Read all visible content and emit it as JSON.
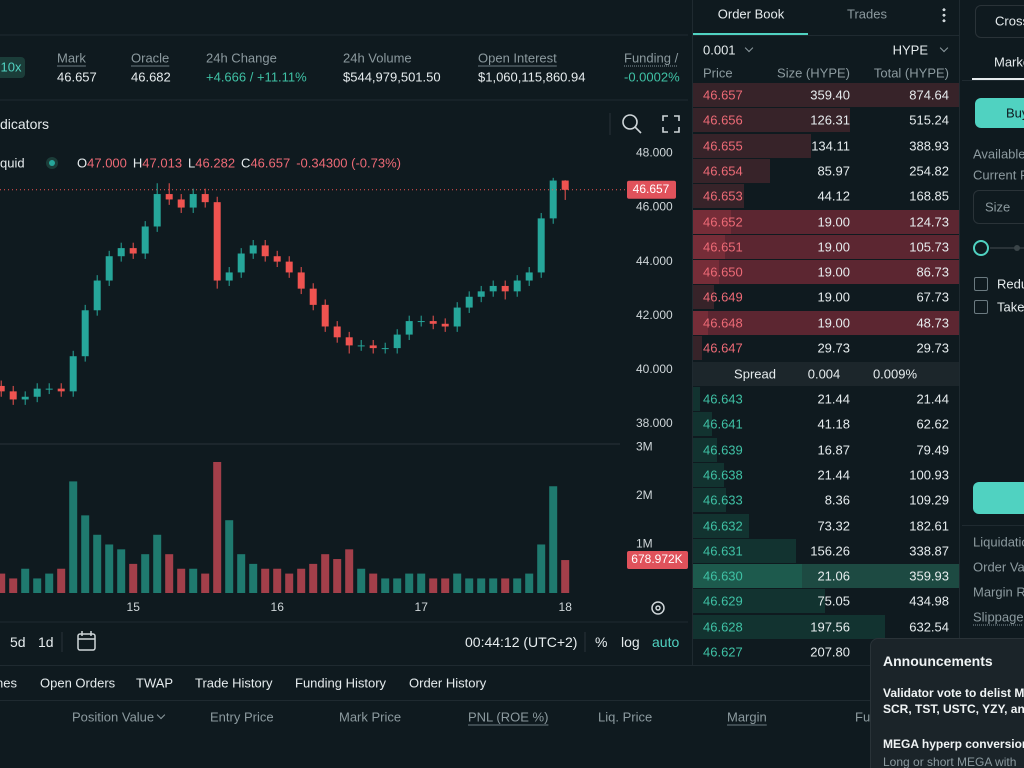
{
  "header": {
    "leverage": "10x",
    "stats": [
      {
        "label": "Mark",
        "value": "46.657"
      },
      {
        "label": "Oracle",
        "value": "46.682"
      },
      {
        "label": "24h Change",
        "value": "+4.666 / +11.11%"
      },
      {
        "label": "24h Volume",
        "value": "$544,979,501.50"
      },
      {
        "label": "Open Interest",
        "value": "$1,060,115,860.94"
      },
      {
        "label": "Funding /",
        "value": "-0.0002%"
      }
    ]
  },
  "toolbar": {
    "indicators": "dicators"
  },
  "legend": {
    "symbol": "quid",
    "items": [
      {
        "key": "O",
        "value": "47.000"
      },
      {
        "key": "H",
        "value": "47.013"
      },
      {
        "key": "L",
        "value": "46.282"
      },
      {
        "key": "C",
        "value": "46.657"
      }
    ],
    "change": "-0.34300 (-0.73%)"
  },
  "bottom_toolbar": {
    "ranges": [
      "5d",
      "1d"
    ],
    "clock": "00:44:12 (UTC+2)",
    "percent": "%",
    "log": "log",
    "auto": "auto"
  },
  "chart_data": {
    "type": "candlestick",
    "up_color": "#26a69a",
    "down_color": "#ef5350",
    "volume_up_color": "#1f7a6f",
    "volume_down_color": "#a33f4a",
    "x": [
      2,
      4,
      6,
      8,
      10,
      12,
      14,
      16,
      18,
      20,
      22,
      24,
      26,
      28,
      30,
      32,
      34,
      36,
      38,
      40,
      42,
      44,
      46,
      48,
      50,
      52,
      54,
      56,
      58,
      60,
      62,
      64,
      66,
      68,
      70,
      72,
      74,
      76,
      78,
      80,
      82,
      84,
      86,
      88,
      90,
      92,
      94,
      96
    ],
    "open": [
      39.4,
      39.2,
      38.9,
      39.0,
      39.3,
      39.3,
      39.2,
      40.5,
      42.2,
      43.3,
      44.2,
      44.5,
      44.3,
      45.3,
      46.5,
      46.3,
      46.0,
      46.5,
      46.2,
      43.3,
      43.6,
      44.3,
      44.6,
      44.2,
      44.0,
      43.6,
      43.0,
      42.4,
      41.6,
      41.2,
      40.9,
      40.9,
      40.8,
      40.8,
      41.3,
      41.8,
      41.8,
      41.7,
      41.6,
      42.3,
      42.7,
      42.9,
      43.1,
      42.9,
      43.3,
      43.6,
      45.6,
      47.0
    ],
    "high": [
      39.6,
      39.4,
      39.2,
      39.5,
      39.5,
      39.5,
      40.7,
      42.4,
      43.5,
      44.4,
      44.7,
      44.7,
      45.5,
      46.9,
      46.9,
      46.5,
      46.7,
      46.7,
      46.4,
      43.8,
      44.5,
      44.8,
      44.8,
      44.4,
      44.2,
      43.8,
      43.2,
      42.6,
      41.8,
      41.4,
      41.1,
      41.1,
      41.0,
      41.5,
      42.0,
      42.0,
      42.0,
      41.9,
      42.5,
      42.9,
      43.1,
      43.3,
      43.3,
      43.5,
      43.8,
      45.8,
      47.1,
      47.013
    ],
    "low": [
      39.0,
      38.7,
      38.7,
      38.8,
      39.1,
      39.0,
      39.0,
      40.3,
      42.0,
      43.1,
      44.0,
      44.1,
      44.1,
      45.1,
      46.1,
      45.8,
      45.8,
      46.0,
      43.0,
      43.1,
      43.4,
      44.1,
      44.0,
      43.8,
      43.4,
      42.8,
      42.2,
      41.4,
      41.0,
      40.6,
      40.7,
      40.6,
      40.6,
      40.6,
      41.1,
      41.6,
      41.5,
      41.4,
      41.4,
      42.1,
      42.5,
      42.7,
      42.6,
      42.7,
      43.1,
      43.4,
      45.4,
      46.282
    ],
    "close": [
      39.2,
      38.9,
      39.0,
      39.3,
      39.3,
      39.2,
      40.5,
      42.2,
      43.3,
      44.2,
      44.5,
      44.3,
      45.3,
      46.5,
      46.3,
      46.0,
      46.5,
      46.2,
      43.3,
      43.6,
      44.3,
      44.6,
      44.2,
      44.0,
      43.6,
      43.0,
      42.4,
      41.6,
      41.2,
      40.9,
      40.9,
      40.8,
      40.8,
      41.3,
      41.8,
      41.8,
      41.7,
      41.6,
      42.3,
      42.7,
      42.9,
      43.1,
      42.9,
      43.3,
      43.6,
      45.6,
      47.0,
      46.657
    ],
    "xlim": [
      1.8,
      103.8
    ],
    "xticks": [
      {
        "value": 24,
        "label": "15"
      },
      {
        "value": 48,
        "label": "16"
      },
      {
        "value": 72,
        "label": "17"
      },
      {
        "value": 96,
        "label": "18"
      }
    ],
    "ylim": [
      37.4,
      48.5
    ],
    "yticks": [
      {
        "value": 38,
        "label": "38.000"
      },
      {
        "value": 40,
        "label": "40.000"
      },
      {
        "value": 42,
        "label": "42.000"
      },
      {
        "value": 44,
        "label": "44.000"
      },
      {
        "value": 46,
        "label": "46.000"
      },
      {
        "value": 48,
        "label": "48.000"
      }
    ],
    "volume": {
      "values": [
        400000,
        300000,
        500000,
        300000,
        400000,
        500000,
        2300000,
        1600000,
        1200000,
        1000000,
        900000,
        600000,
        800000,
        1200000,
        800000,
        500000,
        500000,
        400000,
        2700000,
        1500000,
        800000,
        600000,
        500000,
        500000,
        400000,
        500000,
        600000,
        800000,
        700000,
        900000,
        500000,
        400000,
        300000,
        300000,
        400000,
        400000,
        300000,
        300000,
        400000,
        300000,
        300000,
        300000,
        300000,
        300000,
        400000,
        1000000,
        2200000,
        678972
      ],
      "value_labels": [
        null,
        null,
        null,
        null,
        null,
        null,
        null,
        null,
        null,
        null,
        null,
        null,
        null,
        null,
        null,
        null,
        null,
        null,
        null,
        null,
        null,
        null,
        null,
        null,
        null,
        null,
        null,
        null,
        null,
        null,
        null,
        null,
        null,
        null,
        null,
        null,
        null,
        null,
        null,
        null,
        null,
        null,
        null,
        null,
        null,
        null,
        null,
        "678.972K"
      ],
      "ylim": [
        0,
        3050000
      ],
      "yticks": [
        {
          "value": 1000000,
          "label": "1M"
        },
        {
          "value": 2000000,
          "label": "2M"
        },
        {
          "value": 3000000,
          "label": "3M"
        }
      ]
    }
  },
  "order_book": {
    "tabs": [
      "Order Book",
      "Trades"
    ],
    "tick": "0.001",
    "asset": "HYPE",
    "columns": [
      "Price",
      "Size (HYPE)",
      "Total (HYPE)"
    ],
    "asks": [
      {
        "price": "46.657",
        "size": "359.40",
        "total": "874.64"
      },
      {
        "price": "46.656",
        "size": "126.31",
        "total": "515.24"
      },
      {
        "price": "46.655",
        "size": "134.11",
        "total": "388.93"
      },
      {
        "price": "46.654",
        "size": "85.97",
        "total": "254.82"
      },
      {
        "price": "46.653",
        "size": "44.12",
        "total": "168.85"
      },
      {
        "price": "46.652",
        "size": "19.00",
        "total": "124.73",
        "highlight": true
      },
      {
        "price": "46.651",
        "size": "19.00",
        "total": "105.73",
        "highlight": true
      },
      {
        "price": "46.650",
        "size": "19.00",
        "total": "86.73",
        "highlight": true
      },
      {
        "price": "46.649",
        "size": "19.00",
        "total": "67.73"
      },
      {
        "price": "46.648",
        "size": "19.00",
        "total": "48.73",
        "highlight": true
      },
      {
        "price": "46.647",
        "size": "29.73",
        "total": "29.73"
      }
    ],
    "spread": {
      "label": "Spread",
      "value": "0.004",
      "percent": "0.009%"
    },
    "bids": [
      {
        "price": "46.643",
        "size": "21.44",
        "total": "21.44"
      },
      {
        "price": "46.641",
        "size": "41.18",
        "total": "62.62"
      },
      {
        "price": "46.639",
        "size": "16.87",
        "total": "79.49"
      },
      {
        "price": "46.638",
        "size": "21.44",
        "total": "100.93"
      },
      {
        "price": "46.633",
        "size": "8.36",
        "total": "109.29"
      },
      {
        "price": "46.632",
        "size": "73.32",
        "total": "182.61"
      },
      {
        "price": "46.631",
        "size": "156.26",
        "total": "338.87"
      },
      {
        "price": "46.630",
        "size": "21.06",
        "total": "359.93",
        "highlight": true
      },
      {
        "price": "46.629",
        "size": "75.05",
        "total": "434.98"
      },
      {
        "price": "46.628",
        "size": "197.56",
        "total": "632.54"
      },
      {
        "price": "46.627",
        "size": "207.80"
      }
    ]
  },
  "trade_panel": {
    "margin_mode": "Cross",
    "order_type": "Marke",
    "buy": "Buy",
    "available": "Available",
    "current": "Current P",
    "size": "Size",
    "checkboxes": [
      "Redu",
      "Take"
    ],
    "info": [
      "Liquidation",
      "Order Va",
      "Margin R",
      "Slippage"
    ]
  },
  "bottom_panel": {
    "tabs": [
      "nes",
      "Open Orders",
      "TWAP",
      "Trade History",
      "Funding History",
      "Order History"
    ],
    "columns": [
      "Position Value",
      "Entry Price",
      "Mark Price",
      "PNL (ROE %)",
      "Liq. Price",
      "Margin",
      "Fu"
    ]
  },
  "announcements": {
    "title": "Announcements",
    "items": [
      {
        "lines": [
          "Validator vote to delist M",
          "SCR, TST, USTC, YZY, an"
        ]
      },
      {
        "lines": [
          "MEGA hyperp conversion"
        ],
        "text": "Long or short MEGA with"
      }
    ]
  }
}
